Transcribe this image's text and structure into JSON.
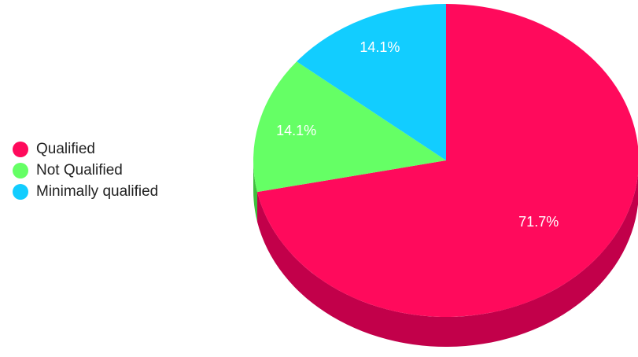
{
  "chart_data": {
    "type": "pie",
    "style": "3d",
    "legend_position": "left",
    "slices": [
      {
        "name": "Qualified",
        "value": 71.7,
        "label": "71.7%",
        "color": "#ff0a5c",
        "side_color": "#c2004a"
      },
      {
        "name": "Not Qualified",
        "value": 14.1,
        "label": "14.1%",
        "color": "#65ff65",
        "side_color": "#3fbf3f"
      },
      {
        "name": "Minimally qualified",
        "value": 14.1,
        "label": "14.1%",
        "color": "#12cdff",
        "side_color": "#0a9cc4"
      }
    ]
  }
}
